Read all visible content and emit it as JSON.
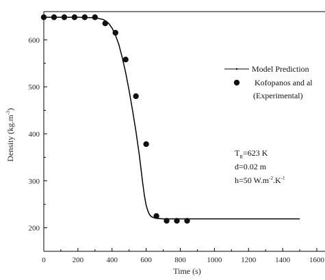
{
  "chart_data": {
    "type": "line",
    "xlabel": "Time (s)",
    "ylabel": "Density (kg.m",
    "ylabel_sup": "-3",
    "ylabel_close": ")",
    "xlim": [
      0,
      1600
    ],
    "ylim": [
      150,
      660
    ],
    "x_ticks": [
      "0",
      "200",
      "400",
      "600",
      "800",
      "1000",
      "1200",
      "1400",
      "1600"
    ],
    "y_ticks": [
      "200",
      "300",
      "400",
      "500",
      "600"
    ],
    "series": [
      {
        "name": "Model Prediction",
        "kind": "line",
        "x": [
          0,
          100,
          200,
          300,
          350,
          380,
          400,
          420,
          440,
          460,
          480,
          500,
          520,
          540,
          560,
          570,
          580,
          590,
          600,
          610,
          620,
          630,
          640,
          660,
          700,
          800,
          1000,
          1200,
          1500
        ],
        "y": [
          648,
          648,
          648,
          647,
          643,
          635,
          625,
          610,
          590,
          562,
          530,
          492,
          450,
          405,
          355,
          325,
          295,
          268,
          248,
          236,
          228,
          224,
          222,
          220,
          219,
          219,
          219,
          219,
          219
        ]
      },
      {
        "name": "Kofopanos and al",
        "name_line2": "(Experimental)",
        "kind": "scatter",
        "x": [
          0,
          60,
          120,
          180,
          240,
          300,
          360,
          420,
          480,
          540,
          600,
          660,
          720,
          780,
          840
        ],
        "y": [
          648,
          648,
          648,
          648,
          648,
          648,
          635,
          615,
          558,
          480,
          378,
          225,
          215,
          215,
          215
        ]
      }
    ],
    "annotations": {
      "line1_main": "T",
      "line1_sub": "R",
      "line1_rest": "=623 K",
      "line2": "d=0.02 m",
      "line3_main": "h=50 W.m",
      "line3_sup1": "-2",
      "line3_mid": ".K",
      "line3_sup2": "-1"
    },
    "legend_position": "right"
  }
}
